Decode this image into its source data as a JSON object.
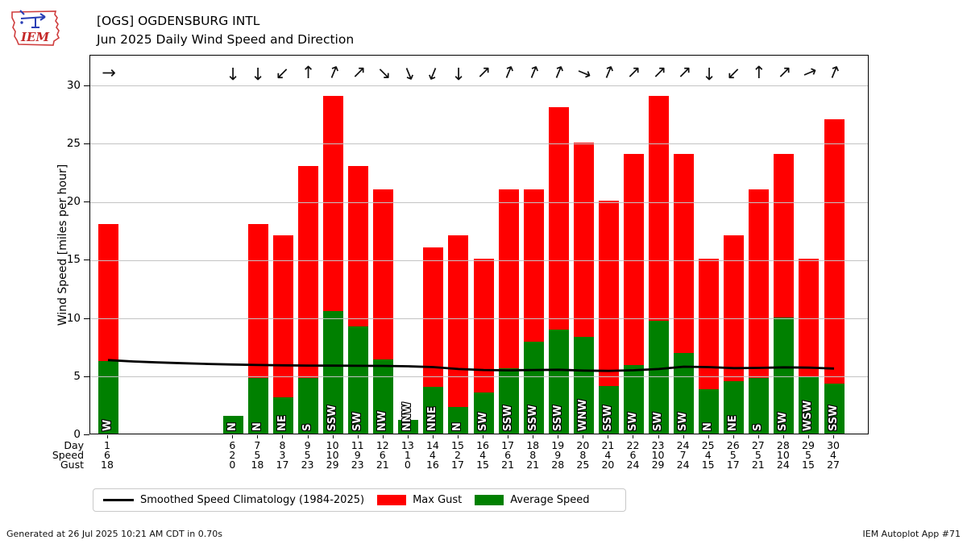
{
  "header": {
    "logo_text": "IEM",
    "title_line1": "[OGS] OGDENSBURG INTL",
    "title_line2": "Jun 2025 Daily Wind Speed and Direction"
  },
  "chart_data": {
    "type": "bar",
    "title": "Jun 2025 Daily Wind Speed and Direction",
    "station": "[OGS] OGDENSBURG INTL",
    "xlabel": "",
    "ylabel": "Wind Speed [miles per hour]",
    "ylim": [
      0,
      30
    ],
    "yticks": [
      0,
      5,
      10,
      15,
      20,
      25,
      30
    ],
    "grid": true,
    "x_axis_rows": [
      "Day",
      "Speed",
      "Gust"
    ],
    "legend_position": "bottom-left",
    "legend": [
      {
        "label": "Smoothed Speed Climatology (1984-2025)",
        "type": "line",
        "color": "#000000"
      },
      {
        "label": "Max Gust",
        "type": "patch",
        "color": "#ff0000"
      },
      {
        "label": "Average Speed",
        "type": "patch",
        "color": "#008000"
      }
    ],
    "colors": {
      "max_gust": "#ff0000",
      "average_speed": "#008000",
      "climatology": "#000000",
      "grid": "#c3c3c3"
    },
    "days": [
      {
        "day": 1,
        "dir": "W",
        "speed": 6,
        "gust": 18,
        "avg_bar": 6.2
      },
      {
        "day": 6,
        "dir": "N",
        "speed": 2,
        "gust": 0,
        "avg_bar": 1.5
      },
      {
        "day": 7,
        "dir": "N",
        "speed": 5,
        "gust": 18,
        "avg_bar": 4.8
      },
      {
        "day": 8,
        "dir": "NE",
        "speed": 3,
        "gust": 17,
        "avg_bar": 3.1
      },
      {
        "day": 9,
        "dir": "S",
        "speed": 5,
        "gust": 23,
        "avg_bar": 4.8
      },
      {
        "day": 10,
        "dir": "SSW",
        "speed": 10,
        "gust": 29,
        "avg_bar": 10.5
      },
      {
        "day": 11,
        "dir": "SW",
        "speed": 9,
        "gust": 23,
        "avg_bar": 9.2
      },
      {
        "day": 12,
        "dir": "NW",
        "speed": 6,
        "gust": 21,
        "avg_bar": 6.4
      },
      {
        "day": 13,
        "dir": "NNW",
        "speed": 1,
        "gust": 0,
        "avg_bar": 1.2
      },
      {
        "day": 14,
        "dir": "NNE",
        "speed": 4,
        "gust": 16,
        "avg_bar": 4.0
      },
      {
        "day": 15,
        "dir": "N",
        "speed": 2,
        "gust": 17,
        "avg_bar": 2.3
      },
      {
        "day": 16,
        "dir": "SW",
        "speed": 4,
        "gust": 15,
        "avg_bar": 3.5
      },
      {
        "day": 17,
        "dir": "SSW",
        "speed": 6,
        "gust": 21,
        "avg_bar": 5.6
      },
      {
        "day": 18,
        "dir": "SSW",
        "speed": 8,
        "gust": 21,
        "avg_bar": 7.9
      },
      {
        "day": 19,
        "dir": "SSW",
        "speed": 9,
        "gust": 28,
        "avg_bar": 8.9
      },
      {
        "day": 20,
        "dir": "WNW",
        "speed": 8,
        "gust": 25,
        "avg_bar": 8.3
      },
      {
        "day": 21,
        "dir": "SSW",
        "speed": 4,
        "gust": 20,
        "avg_bar": 4.1
      },
      {
        "day": 22,
        "dir": "SW",
        "speed": 6,
        "gust": 24,
        "avg_bar": 5.9
      },
      {
        "day": 23,
        "dir": "SW",
        "speed": 10,
        "gust": 29,
        "avg_bar": 9.7
      },
      {
        "day": 24,
        "dir": "SW",
        "speed": 7,
        "gust": 24,
        "avg_bar": 6.9
      },
      {
        "day": 25,
        "dir": "N",
        "speed": 4,
        "gust": 15,
        "avg_bar": 3.8
      },
      {
        "day": 26,
        "dir": "NE",
        "speed": 5,
        "gust": 17,
        "avg_bar": 4.5
      },
      {
        "day": 27,
        "dir": "S",
        "speed": 5,
        "gust": 21,
        "avg_bar": 4.8
      },
      {
        "day": 28,
        "dir": "SW",
        "speed": 10,
        "gust": 24,
        "avg_bar": 10.0
      },
      {
        "day": 29,
        "dir": "WSW",
        "speed": 5,
        "gust": 15,
        "avg_bar": 4.9
      },
      {
        "day": 30,
        "dir": "SSW",
        "speed": 4,
        "gust": 27,
        "avg_bar": 4.3
      }
    ],
    "climatology": {
      "days": [
        1,
        2,
        3,
        4,
        5,
        6,
        7,
        8,
        9,
        10,
        11,
        12,
        13,
        14,
        15,
        16,
        17,
        18,
        19,
        20,
        21,
        22,
        23,
        24,
        25,
        26,
        27,
        28,
        29,
        30
      ],
      "values": [
        6.45,
        6.33,
        6.25,
        6.18,
        6.12,
        6.07,
        6.03,
        6.0,
        5.98,
        5.97,
        5.96,
        5.95,
        5.92,
        5.85,
        5.68,
        5.6,
        5.57,
        5.6,
        5.62,
        5.55,
        5.52,
        5.58,
        5.68,
        5.88,
        5.85,
        5.76,
        5.78,
        5.83,
        5.8,
        5.72
      ]
    }
  },
  "footer": {
    "left": "Generated at 26 Jul 2025 10:21 AM CDT in 0.70s",
    "right": "IEM Autoplot App #71"
  }
}
